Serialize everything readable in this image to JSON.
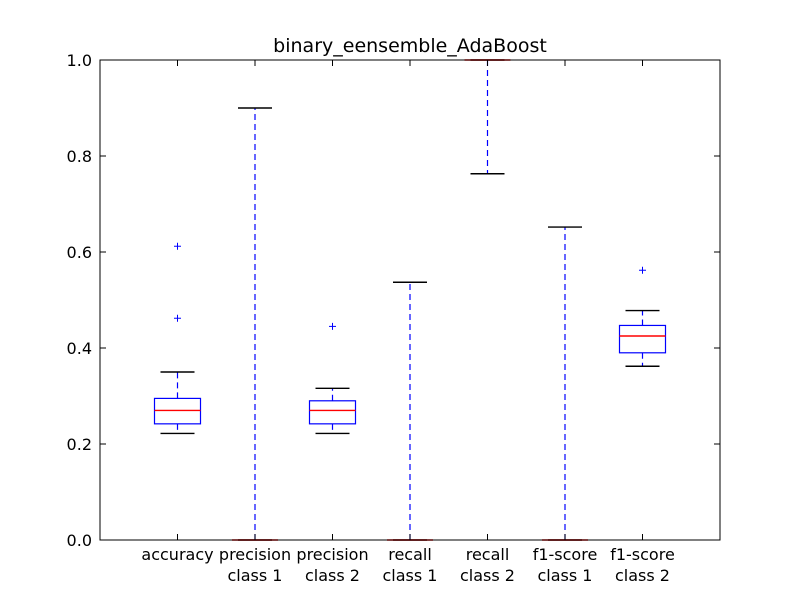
{
  "chart_data": {
    "type": "box",
    "title": "binary_eensemble_AdaBoost",
    "xlabel": "",
    "ylabel": "",
    "ylim": [
      0.0,
      1.0
    ],
    "yticks": [
      "0.0",
      "0.2",
      "0.4",
      "0.6",
      "0.8",
      "1.0"
    ],
    "grid": false,
    "categories": [
      [
        "accuracy"
      ],
      [
        "precision",
        "class 1"
      ],
      [
        "precision",
        "class 2"
      ],
      [
        "recall",
        "class 1"
      ],
      [
        "recall",
        "class 2"
      ],
      [
        "f1-score",
        "class 1"
      ],
      [
        "f1-score",
        "class 2"
      ]
    ],
    "boxes": [
      {
        "whisker_low": 0.222,
        "q1": 0.242,
        "median": 0.27,
        "q3": 0.295,
        "whisker_high": 0.35,
        "fliers": [
          0.462,
          0.612
        ]
      },
      {
        "whisker_low": 0.0,
        "q1": 0.0,
        "median": 0.0,
        "q3": 0.0,
        "whisker_high": 0.9,
        "fliers": []
      },
      {
        "whisker_low": 0.222,
        "q1": 0.242,
        "median": 0.27,
        "q3": 0.29,
        "whisker_high": 0.316,
        "fliers": [
          0.445
        ]
      },
      {
        "whisker_low": 0.0,
        "q1": 0.0,
        "median": 0.0,
        "q3": 0.0,
        "whisker_high": 0.537,
        "fliers": []
      },
      {
        "whisker_low": 0.763,
        "q1": 1.0,
        "median": 1.0,
        "q3": 1.0,
        "whisker_high": 1.0,
        "fliers": []
      },
      {
        "whisker_low": 0.0,
        "q1": 0.0,
        "median": 0.0,
        "q3": 0.0,
        "whisker_high": 0.652,
        "fliers": []
      },
      {
        "whisker_low": 0.362,
        "q1": 0.39,
        "median": 0.425,
        "q3": 0.447,
        "whisker_high": 0.478,
        "fliers": [
          0.562
        ]
      }
    ],
    "colors": {
      "box": "#0000ff",
      "median": "#ff0000",
      "whisker": "#0000ff",
      "cap": "#000000",
      "flier": "#0000ff",
      "axes": "#000000"
    }
  }
}
